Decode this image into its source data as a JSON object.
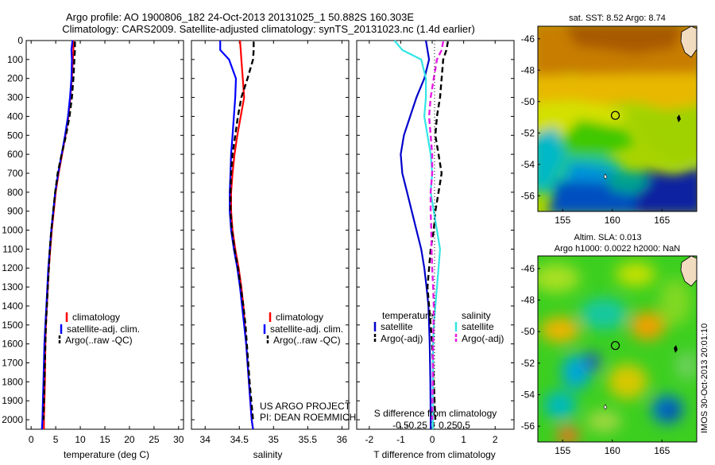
{
  "figure": {
    "title_line1": "Argo profile: AO 1900806_182 24-Oct-2013 20131025_1 50.882S 160.303E",
    "title_line2": "Climatology: CARS2009. Satellite-adjusted climatology: synTS_20131023.nc (1.4d earlier)",
    "credit_line1": "US ARGO PROJECT",
    "credit_line2": "PI: DEAN ROEMMICH",
    "timestamp": "IMOS 30-Oct-2013 20:01:10"
  },
  "colors": {
    "climatology": "#ff0000",
    "satellite_adj": "#0000ff",
    "argo": "#000000",
    "temp_satellite": "#0000cc",
    "sal_satellite": "#33e5e5",
    "sal_argo": "#e619e6"
  },
  "chart_data": [
    {
      "type": "line",
      "panel": "temperature",
      "xlabel": "temperature (deg C)",
      "xlim": [
        -1,
        31
      ],
      "ylim": [
        2050,
        0
      ],
      "xticks": [
        "0",
        "5",
        "10",
        "15",
        "20",
        "25",
        "30"
      ],
      "yticks": [
        "0",
        "100",
        "200",
        "300",
        "400",
        "500",
        "600",
        "700",
        "800",
        "900",
        "1000",
        "1100",
        "1200",
        "1300",
        "1400",
        "1500",
        "1600",
        "1700",
        "1800",
        "1900",
        "2000"
      ],
      "legend": [
        "climatology",
        "satellite-adj. clim.",
        "Argo(..raw -QC)"
      ],
      "series": [
        {
          "name": "climatology",
          "style": "solid",
          "x": [
            8.6,
            8.6,
            8.5,
            8.3,
            8.0,
            7.6,
            7.0,
            6.3,
            5.6,
            5.0,
            4.6,
            4.2,
            3.9,
            3.6,
            3.4,
            3.2,
            3.0,
            2.9,
            2.8,
            2.6,
            2.6
          ],
          "y": [
            0,
            50,
            100,
            200,
            300,
            400,
            500,
            600,
            700,
            800,
            900,
            1000,
            1100,
            1200,
            1300,
            1400,
            1500,
            1600,
            1800,
            2000,
            2050
          ]
        },
        {
          "name": "satellite-adj. clim.",
          "style": "solid",
          "x": [
            8.4,
            8.2,
            8.3,
            8.2,
            7.9,
            7.5,
            6.9,
            6.2,
            5.5,
            4.9,
            4.5,
            4.1,
            3.8,
            3.5,
            3.3,
            3.1,
            2.9,
            2.7,
            2.5,
            2.3,
            2.2
          ],
          "y": [
            0,
            50,
            100,
            200,
            300,
            400,
            500,
            600,
            700,
            800,
            900,
            1000,
            1100,
            1200,
            1300,
            1400,
            1500,
            1600,
            1800,
            2000,
            2050
          ]
        },
        {
          "name": "Argo(..raw -QC)",
          "style": "dashed",
          "x": [
            8.9,
            8.9,
            8.8,
            8.6,
            8.3,
            7.8,
            7.1,
            6.2,
            5.4,
            4.9,
            4.5,
            4.1,
            3.8,
            3.6,
            3.4,
            3.2,
            3.0,
            2.9,
            2.7,
            2.5
          ],
          "y": [
            5,
            50,
            100,
            200,
            300,
            400,
            500,
            600,
            700,
            800,
            900,
            1000,
            1100,
            1200,
            1300,
            1400,
            1500,
            1600,
            1800,
            2000
          ]
        }
      ]
    },
    {
      "type": "line",
      "panel": "salinity",
      "xlabel": "salinity",
      "xlim": [
        33.8,
        36.1
      ],
      "ylim": [
        2050,
        0
      ],
      "xticks": [
        "34",
        "34.5",
        "35",
        "35.5",
        "36"
      ],
      "legend": [
        "climatology",
        "satellite-adj. clim.",
        "Argo(..raw -QC)"
      ],
      "series": [
        {
          "name": "climatology",
          "style": "solid",
          "x": [
            34.51,
            34.52,
            34.53,
            34.55,
            34.57,
            34.52,
            34.47,
            34.43,
            34.4,
            34.38,
            34.38,
            34.4,
            34.44,
            34.49,
            34.53,
            34.56,
            34.58,
            34.6,
            34.64,
            34.68,
            34.7
          ],
          "y": [
            0,
            50,
            100,
            200,
            300,
            400,
            500,
            600,
            700,
            800,
            900,
            1000,
            1100,
            1200,
            1300,
            1400,
            1500,
            1600,
            1800,
            2000,
            2050
          ]
        },
        {
          "name": "satellite-adj. clim.",
          "style": "solid",
          "x": [
            34.22,
            34.22,
            34.35,
            34.45,
            34.44,
            34.42,
            34.4,
            34.38,
            34.37,
            34.36,
            34.36,
            34.38,
            34.42,
            34.47,
            34.51,
            34.54,
            34.57,
            34.6,
            34.64,
            34.68,
            34.7
          ],
          "y": [
            0,
            50,
            100,
            200,
            300,
            400,
            500,
            600,
            700,
            800,
            900,
            1000,
            1100,
            1200,
            1300,
            1400,
            1500,
            1600,
            1800,
            2000,
            2050
          ]
        },
        {
          "name": "Argo(..raw -QC)",
          "style": "dashed",
          "x": [
            34.71,
            34.71,
            34.7,
            34.62,
            34.53,
            34.48,
            34.44,
            34.4,
            34.38,
            34.37,
            34.37,
            34.39,
            34.43,
            34.48,
            34.52,
            34.56,
            34.59,
            34.61,
            34.65,
            34.7
          ],
          "y": [
            5,
            50,
            100,
            200,
            300,
            400,
            500,
            600,
            700,
            800,
            900,
            1000,
            1100,
            1200,
            1300,
            1400,
            1500,
            1600,
            1800,
            2000
          ]
        }
      ]
    },
    {
      "type": "line",
      "panel": "difference",
      "xlabel": "T difference from climatology",
      "xlabel_top": "S difference from climatology",
      "xlim": [
        -2.4,
        2.6
      ],
      "ylim": [
        2050,
        0
      ],
      "xticks": [
        "-2",
        "-1",
        "0",
        "1",
        "2"
      ],
      "xticks_s": [
        "-0.5",
        "-0.25",
        "0",
        "0.25",
        "0.5"
      ],
      "legend_left_title": "temperature",
      "legend_right_title": "salinity",
      "legend": [
        "satellite",
        "Argo(-adj)",
        "satellite",
        "Argo(-adj)"
      ],
      "series": [
        {
          "name": "satellite",
          "group": "temperature",
          "style": "solid",
          "x": [
            -0.2,
            -0.15,
            -0.1,
            -0.25,
            -0.5,
            -0.7,
            -0.9,
            -1.0,
            -0.95,
            -0.8,
            -0.65,
            -0.5,
            -0.35,
            -0.25,
            -0.18,
            -0.12,
            -0.1,
            -0.08,
            -0.06,
            -0.05,
            -0.05
          ],
          "y": [
            0,
            50,
            100,
            200,
            300,
            400,
            500,
            600,
            700,
            800,
            900,
            1000,
            1100,
            1200,
            1300,
            1400,
            1500,
            1600,
            1800,
            2000,
            2050
          ]
        },
        {
          "name": "Argo(-adj)",
          "group": "temperature",
          "style": "dashed",
          "x": [
            0.5,
            0.45,
            0.35,
            0.3,
            0.25,
            0.15,
            0.1,
            0.2,
            0.3,
            0.2,
            0.1,
            0.05,
            -0.05,
            -0.1,
            -0.15,
            -0.1,
            -0.05,
            0.0,
            0.05,
            0.1
          ],
          "y": [
            5,
            50,
            100,
            200,
            300,
            400,
            500,
            600,
            700,
            800,
            900,
            1000,
            1100,
            1200,
            1300,
            1400,
            1500,
            1600,
            1800,
            2000
          ]
        },
        {
          "name": "satellite",
          "group": "salinity",
          "style": "solid",
          "x": [
            -1.2,
            -0.95,
            -0.35,
            -0.2,
            -0.2,
            -0.25,
            -0.15,
            -0.05,
            0.0,
            -0.05,
            0.05,
            0.15,
            0.25,
            0.2,
            0.15,
            0.1,
            0.05,
            0.03,
            0.02,
            0.02,
            0.02
          ],
          "y": [
            0,
            50,
            100,
            200,
            300,
            400,
            500,
            600,
            700,
            800,
            900,
            1000,
            1100,
            1200,
            1300,
            1400,
            1500,
            1600,
            1800,
            2000,
            2050
          ]
        },
        {
          "name": "Argo(-adj)",
          "group": "salinity",
          "style": "dashed",
          "x": [
            0.35,
            0.3,
            0.15,
            0.05,
            -0.05,
            -0.1,
            -0.05,
            0.0,
            0.0,
            -0.05,
            -0.05,
            -0.03,
            -0.02,
            0.0,
            0.03,
            0.05,
            0.04,
            0.03,
            0.02,
            0.0
          ],
          "y": [
            5,
            50,
            100,
            200,
            300,
            400,
            500,
            600,
            700,
            800,
            900,
            1000,
            1100,
            1200,
            1300,
            1400,
            1500,
            1600,
            1800,
            2000
          ]
        }
      ]
    },
    {
      "type": "heatmap",
      "panel": "sst_map",
      "title": "sat. SST: 8.52 Argo: 8.74",
      "xticks": [
        "155",
        "160",
        "165"
      ],
      "yticks": [
        "-46",
        "-48",
        "-50",
        "-52",
        "-54",
        "-56"
      ],
      "xlim": [
        152.5,
        168.5
      ],
      "ylim": [
        -57,
        -45.2
      ],
      "marker": {
        "lon": 160.303,
        "lat": -50.882
      }
    },
    {
      "type": "heatmap",
      "panel": "sla_map",
      "title_line1": "Altim. SLA: 0.013",
      "title_line2": "Argo h1000: 0.0022 h2000: NaN",
      "xticks": [
        "155",
        "160",
        "165"
      ],
      "yticks": [
        "-46",
        "-48",
        "-50",
        "-52",
        "-54",
        "-56"
      ],
      "xlim": [
        152.5,
        168.5
      ],
      "ylim": [
        -57,
        -45.2
      ],
      "marker": {
        "lon": 160.303,
        "lat": -50.882
      }
    }
  ]
}
